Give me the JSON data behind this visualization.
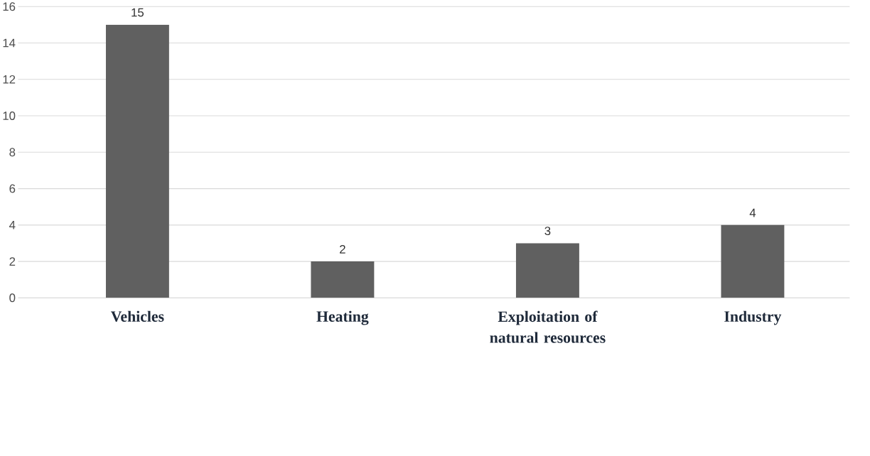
{
  "chart_data": {
    "type": "bar",
    "categories": [
      "Vehicles",
      "Heating",
      "Exploitation of natural resources",
      "Industry"
    ],
    "values": [
      15,
      2,
      3,
      4
    ],
    "color": "#606060",
    "ylim": [
      0,
      16
    ],
    "yticks": [
      0,
      2,
      4,
      6,
      8,
      10,
      12,
      14,
      16
    ],
    "grid": "y",
    "data_labels": true
  }
}
